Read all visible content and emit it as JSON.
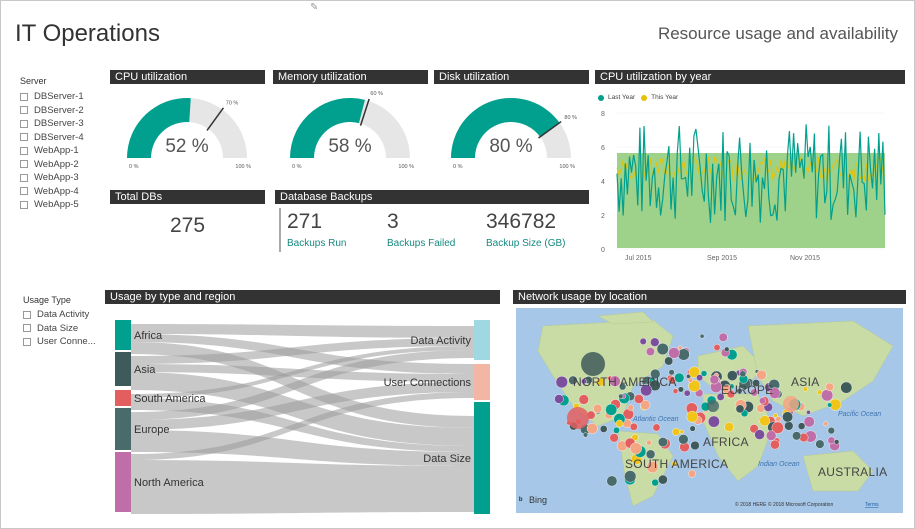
{
  "header": {
    "title": "IT Operations",
    "subtitle": "Resource usage and availability"
  },
  "server_slicer": {
    "title": "Server",
    "items": [
      "DBServer-1",
      "DBServer-2",
      "DBServer-3",
      "DBServer-4",
      "WebApp-1",
      "WebApp-2",
      "WebApp-3",
      "WebApp-4",
      "WebApp-5"
    ]
  },
  "usage_slicer": {
    "title": "Usage Type",
    "items": [
      "Data Activity",
      "Data Size",
      "User Conne..."
    ]
  },
  "gauges": [
    {
      "title": "CPU utilization",
      "value_label": "52 %",
      "value": 52,
      "target": 70,
      "target_label": "70 %",
      "min_label": "0 %",
      "max_label": "100 %"
    },
    {
      "title": "Memory utilization",
      "value_label": "58 %",
      "value": 58,
      "target": 60,
      "target_label": "60 %",
      "min_label": "0 %",
      "max_label": "100 %"
    },
    {
      "title": "Disk utilization",
      "value_label": "80 %",
      "value": 80,
      "target": 80,
      "target_label": "80 %",
      "min_label": "0 %",
      "max_label": "100 %"
    }
  ],
  "total_dbs": {
    "title": "Total DBs",
    "value": "275"
  },
  "backups": {
    "title": "Database Backups",
    "kpis": [
      {
        "value": "271",
        "label": "Backups Run"
      },
      {
        "value": "3",
        "label": "Backups Failed"
      },
      {
        "value": "346782",
        "label": "Backup Size (GB)"
      }
    ]
  },
  "cpu_year": {
    "title": "CPU utilization by year",
    "legend": [
      {
        "name": "Last Year",
        "color": "#01A08E"
      },
      {
        "name": "This Year",
        "color": "#E8C100"
      }
    ],
    "y_ticks": [
      "8",
      "6",
      "4",
      "2",
      "0"
    ],
    "x_ticks": [
      "Jul 2015",
      "Sep 2015",
      "Nov 2015"
    ],
    "colors": {
      "area": "#9ED28A",
      "last": "#01A08E",
      "this": "#E8C100"
    }
  },
  "sankey": {
    "title": "Usage by type and region",
    "sources": [
      "Africa",
      "Asia",
      "South America",
      "Europe",
      "North America"
    ],
    "source_colors": [
      "#01A08E",
      "#3F5A5A",
      "#E35F5F",
      "#4A6B6B",
      "#C06EA8"
    ],
    "targets": [
      "Data Activity",
      "User Connections",
      "Data Size"
    ],
    "target_colors": [
      "#9FD8E0",
      "#F4B6A4",
      "#01A08E"
    ]
  },
  "map": {
    "title": "Network usage by location",
    "continents": [
      "NORTH AMERICA",
      "EUROPE",
      "ASIA",
      "SOUTH AMERICA",
      "AFRICA",
      "AUSTRALIA"
    ],
    "oceans": [
      "Atlantic Ocean",
      "Pacific Ocean",
      "Indian Ocean"
    ],
    "logo": "Bing",
    "copyright": "© 2018 HERE © 2018 Microsoft Corporation",
    "terms": "Terms"
  }
}
